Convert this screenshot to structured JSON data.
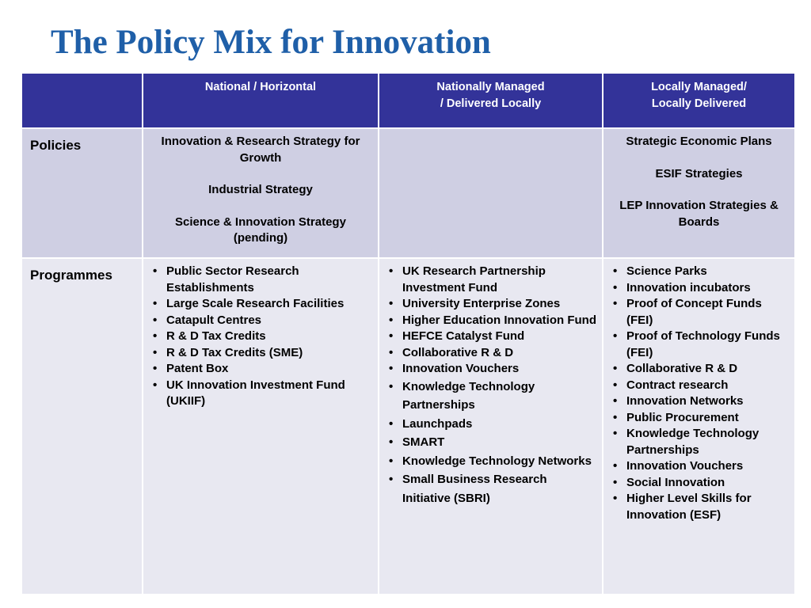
{
  "slide": {
    "title": "The Policy Mix for Innovation"
  },
  "table": {
    "header": {
      "blank": "",
      "col_national": "National / Horizontal",
      "col_nationally_managed_line1": "Nationally Managed",
      "col_nationally_managed_line2": "/ Delivered Locally",
      "col_locally_managed_line1": "Locally Managed/",
      "col_locally_managed_line2": "Locally Delivered"
    },
    "rows": {
      "policies": {
        "label": "Policies",
        "national": [
          "Innovation & Research Strategy for Growth",
          "Industrial Strategy",
          "Science & Innovation Strategy (pending)"
        ],
        "nationally_managed": [],
        "locally_managed": [
          "Strategic Economic Plans",
          "ESIF Strategies",
          "LEP Innovation Strategies & Boards"
        ]
      },
      "programmes": {
        "label": "Programmes",
        "national": [
          "Public Sector Research Establishments",
          "Large Scale Research Facilities",
          "Catapult Centres",
          "R & D Tax Credits",
          "R & D Tax Credits (SME)",
          "Patent Box",
          "UK Innovation Investment Fund (UKIIF)"
        ],
        "nationally_managed": [
          "UK Research Partnership Investment Fund",
          "University Enterprise Zones",
          "Higher Education Innovation Fund",
          "HEFCE Catalyst Fund",
          "Collaborative R & D",
          "Innovation Vouchers",
          "Knowledge Technology Partnerships",
          "Launchpads",
          "SMART",
          "Knowledge Technology Networks",
          "Small Business Research Initiative (SBRI)"
        ],
        "locally_managed": [
          "Science Parks",
          "Innovation incubators",
          "Proof of Concept Funds (FEI)",
          "Proof of Technology Funds (FEI)",
          "Collaborative R & D",
          "Contract research",
          "Innovation Networks",
          "Public Procurement",
          "Knowledge Technology Partnerships",
          "Innovation Vouchers",
          "Social Innovation",
          "Higher Level Skills for Innovation (ESF)"
        ]
      }
    }
  },
  "colors": {
    "title": "#1f5fa8",
    "header_bg": "#333399",
    "policies_row_bg": "#cfcfe3",
    "programmes_row_bg": "#e8e8f1"
  }
}
